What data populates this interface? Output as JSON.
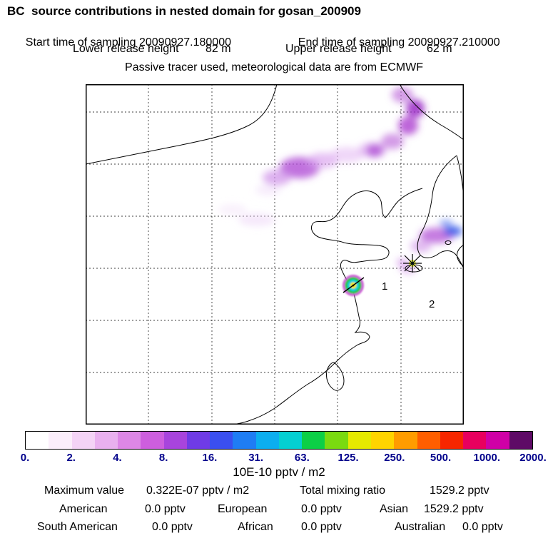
{
  "title": "BC  source contributions in nested domain for gosan_200909",
  "header": {
    "sampling": {
      "start_label": "Start time of sampling",
      "start_value": "20090927.180000",
      "end_label": "End time of sampling",
      "end_value": "20090927.210000"
    },
    "release": {
      "lower_label": "Lower release height",
      "lower_value": "82 m",
      "upper_label": "Upper release height",
      "upper_value": "62 m"
    },
    "tracer_note": "Passive tracer used, meteorological data are from ECMWF"
  },
  "map": {
    "markers": [
      {
        "label": "1"
      },
      {
        "label": "2"
      }
    ]
  },
  "chart_data": {
    "type": "heatmap",
    "title": "BC source contributions in nested domain for gosan_200909",
    "description": "Map of East Asia (China coast, Korea, Jeju, Taiwan) with dashed lat/lon grid, magenta-purple emission-sensitivity plumes across northern China and near Korea, a multicolour source hotspot labelled 1, and a receptor asterisk near Jeju labelled 2.",
    "colorbar": {
      "tick_labels": [
        "0.",
        "2.",
        "4.",
        "8.",
        "16.",
        "31.",
        "63.",
        "125.",
        "250.",
        "500.",
        "1000.",
        "2000."
      ],
      "tick_values": [
        0,
        2,
        4,
        8,
        16,
        31,
        63,
        125,
        250,
        500,
        1000,
        2000
      ],
      "unit": "10E-10 pptv / m2",
      "segment_colors": [
        "#ffffff",
        "#fbeefb",
        "#f4d3f6",
        "#e9b0ef",
        "#dd87e6",
        "#cd5ede",
        "#a844dd",
        "#6f3be6",
        "#3a4ff0",
        "#1f7df4",
        "#0caeef",
        "#04cfd2",
        "#0ccf46",
        "#7ada10",
        "#e6ea00",
        "#ffd400",
        "#ff9c00",
        "#ff5e00",
        "#f72600",
        "#e8005e",
        "#cf00a6",
        "#5e0a66"
      ]
    },
    "markers": [
      {
        "label": "1",
        "meaning": "source contribution hotspot"
      },
      {
        "label": "2",
        "meaning": "receptor site (asterisk marker)"
      }
    ],
    "stats": {
      "maximum_value_pptv_m2": "0.322E-07",
      "total_mixing_ratio_pptv": 1529.2,
      "regions": {
        "American": 0.0,
        "European": 0.0,
        "Asian": 1529.2,
        "South_American": 0.0,
        "African": 0.0,
        "Australian": 0.0
      }
    }
  },
  "stats": {
    "row1": {
      "max_label": "Maximum value",
      "max_value": "0.322E-07 pptv / m2",
      "total_label": "Total mixing ratio",
      "total_value": "1529.2 pptv"
    },
    "row2": {
      "c1_label": "American",
      "c1_value": "0.0 pptv",
      "c2_label": "European",
      "c2_value": "0.0 pptv",
      "c3_label": "Asian",
      "c3_value": "1529.2 pptv"
    },
    "row3": {
      "c1_label": "South American",
      "c1_value": "0.0 pptv",
      "c2_label": "African",
      "c2_value": "0.0 pptv",
      "c3_label": "Australian",
      "c3_value": "0.0 pptv"
    }
  }
}
